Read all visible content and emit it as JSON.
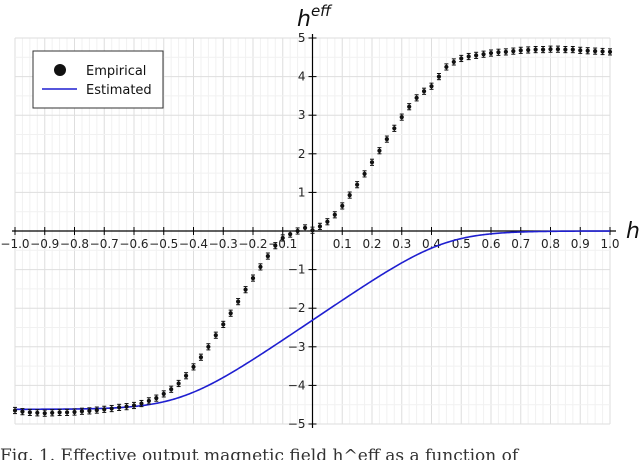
{
  "chart_data": {
    "type": "scatter",
    "xlabel": "h",
    "ylabel_base": "h",
    "ylabel_sup": "eff",
    "xlim": [
      -1.0,
      1.0
    ],
    "ylim": [
      -5,
      5
    ],
    "x_ticks": [
      "−1.0",
      "−0.9",
      "−0.8",
      "−0.7",
      "−0.6",
      "−0.5",
      "−0.4",
      "−0.3",
      "−0.2",
      "−0.1",
      "0.1",
      "0.2",
      "0.3",
      "0.4",
      "0.5",
      "0.6",
      "0.7",
      "0.8",
      "0.9",
      "1.0"
    ],
    "x_tick_values": [
      -1.0,
      -0.9,
      -0.8,
      -0.7,
      -0.6,
      -0.5,
      -0.4,
      -0.3,
      -0.2,
      -0.1,
      0.1,
      0.2,
      0.3,
      0.4,
      0.5,
      0.6,
      0.7,
      0.8,
      0.9,
      1.0
    ],
    "y_ticks": [
      "5",
      "4",
      "3",
      "2",
      "1",
      "−1",
      "−2",
      "−3",
      "−4",
      "−5"
    ],
    "y_tick_values": [
      5,
      4,
      3,
      2,
      1,
      -1,
      -2,
      -3,
      -4,
      -5
    ],
    "grid": true,
    "legend_position": "top-left",
    "series": [
      {
        "name": "Empirical",
        "marker": "circle",
        "color": "#111111",
        "error_bar": 0.08,
        "x": [
          -1.0,
          -0.975,
          -0.95,
          -0.925,
          -0.9,
          -0.875,
          -0.85,
          -0.825,
          -0.8,
          -0.775,
          -0.75,
          -0.725,
          -0.7,
          -0.675,
          -0.65,
          -0.625,
          -0.6,
          -0.575,
          -0.55,
          -0.525,
          -0.5,
          -0.475,
          -0.45,
          -0.425,
          -0.4,
          -0.375,
          -0.35,
          -0.325,
          -0.3,
          -0.275,
          -0.25,
          -0.225,
          -0.2,
          -0.175,
          -0.15,
          -0.125,
          -0.1,
          -0.075,
          -0.05,
          -0.025,
          0.0,
          0.025,
          0.05,
          0.075,
          0.1,
          0.125,
          0.15,
          0.175,
          0.2,
          0.225,
          0.25,
          0.275,
          0.3,
          0.325,
          0.35,
          0.375,
          0.4,
          0.425,
          0.45,
          0.475,
          0.5,
          0.525,
          0.55,
          0.575,
          0.6,
          0.625,
          0.65,
          0.675,
          0.7,
          0.725,
          0.75,
          0.775,
          0.8,
          0.825,
          0.85,
          0.875,
          0.9,
          0.925,
          0.95,
          0.975,
          1.0
        ],
        "y": [
          -4.65,
          -4.68,
          -4.7,
          -4.71,
          -4.72,
          -4.71,
          -4.7,
          -4.7,
          -4.69,
          -4.67,
          -4.66,
          -4.64,
          -4.62,
          -4.6,
          -4.57,
          -4.55,
          -4.52,
          -4.47,
          -4.4,
          -4.33,
          -4.22,
          -4.1,
          -3.95,
          -3.75,
          -3.52,
          -3.27,
          -3.0,
          -2.7,
          -2.42,
          -2.13,
          -1.83,
          -1.52,
          -1.22,
          -0.93,
          -0.65,
          -0.38,
          -0.18,
          -0.08,
          0.0,
          0.08,
          0.02,
          0.12,
          0.24,
          0.42,
          0.65,
          0.93,
          1.2,
          1.48,
          1.78,
          2.08,
          2.38,
          2.66,
          2.95,
          3.22,
          3.45,
          3.62,
          3.75,
          4.0,
          4.25,
          4.38,
          4.47,
          4.52,
          4.55,
          4.58,
          4.61,
          4.63,
          4.64,
          4.66,
          4.68,
          4.69,
          4.7,
          4.7,
          4.71,
          4.71,
          4.7,
          4.7,
          4.68,
          4.67,
          4.66,
          4.65,
          4.64
        ]
      },
      {
        "name": "Estimated",
        "color": "#1f1fd0",
        "plateau": 4.62,
        "linear_half_width": 0.44,
        "knee_width": 0.09
      }
    ]
  },
  "caption": "Fig. 1.  Effective output magnetic field h^eff as a function of"
}
